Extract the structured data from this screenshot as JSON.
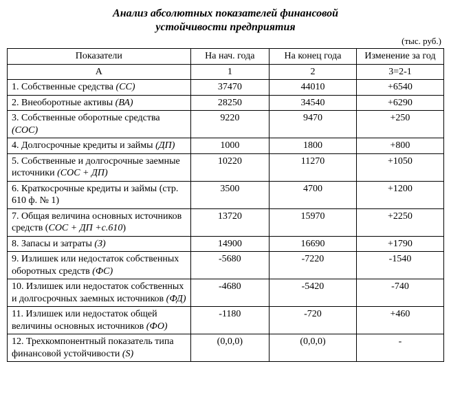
{
  "title_line1": "Анализ абсолютных показателей финансовой",
  "title_line2": "устойчивости предприятия",
  "unit_label": "(тыс. руб.)",
  "headers": {
    "col1": "Показатели",
    "col2": "На нач. года",
    "col3": "На конец года",
    "col4": "Изменение за год",
    "sub1": "А",
    "sub2": "1",
    "sub3": "2",
    "sub4": "3=2-1"
  },
  "rows": [
    {
      "label": "1. Собственные средства ",
      "em": "(СС)",
      "v1": "37470",
      "v2": "44010",
      "v3": "+6540"
    },
    {
      "label": "2. Внеоборотные активы ",
      "em": "(ВА)",
      "v1": "28250",
      "v2": "34540",
      "v3": "+6290"
    },
    {
      "label": "3. Собственные оборотные средства ",
      "em": "(СОС)",
      "v1": "9220",
      "v2": "9470",
      "v3": "+250"
    },
    {
      "label": "4. Долгосрочные кредиты и займы ",
      "em": "(ДП)",
      "v1": "1000",
      "v2": "1800",
      "v3": "+800"
    },
    {
      "label": "5. Собственные и долгосрочные заемные источники ",
      "em": "(СОС + ДП)",
      "v1": "10220",
      "v2": "11270",
      "v3": "+1050"
    },
    {
      "label": "6. Краткосрочные кредиты и займы (стр. 610 ф. № 1)",
      "em": "",
      "v1": "3500",
      "v2": "4700",
      "v3": "+1200"
    },
    {
      "label": "7. Общая величина основных источников средств (",
      "em": "СОС + ДП +с.610",
      "tail": ")",
      "v1": "13720",
      "v2": "15970",
      "v3": "+2250"
    },
    {
      "label": "8. Запасы и затраты ",
      "em": "(З)",
      "v1": "14900",
      "v2": "16690",
      "v3": "+1790"
    },
    {
      "label": "9. Излишек или недостаток собственных оборотных средств ",
      "em": "(ФС)",
      "v1": "-5680",
      "v2": "-7220",
      "v3": "-1540"
    },
    {
      "label": "10. Излишек или недостаток собственных и долгосрочных заемных источников ",
      "em": "(ФД)",
      "v1": "-4680",
      "v2": "-5420",
      "v3": "-740"
    },
    {
      "label": "11. Излишек или недостаток общей величины основных источников ",
      "em": "(ФО)",
      "v1": "-1180",
      "v2": "-720",
      "v3": "+460"
    },
    {
      "label": "12. Трехкомпонентный показатель типа финансовой устойчивости ",
      "em": "(S)",
      "v1": "(0,0,0)",
      "v2": "(0,0,0)",
      "v3": "-"
    }
  ]
}
